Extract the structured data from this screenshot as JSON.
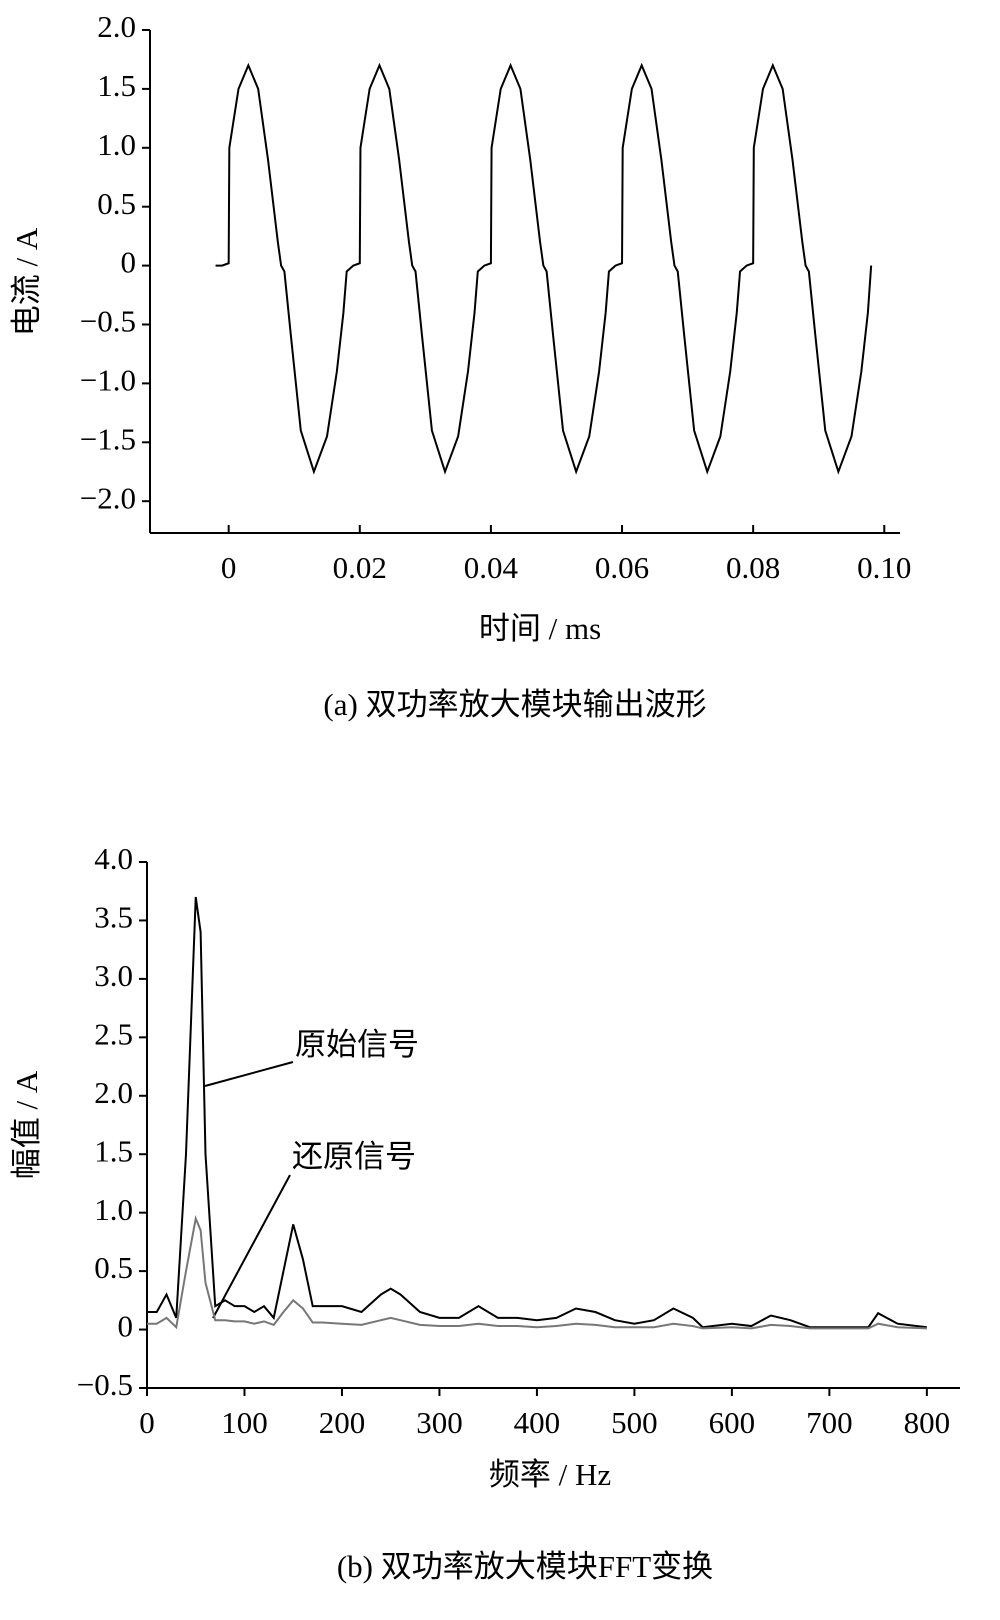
{
  "chart_data": [
    {
      "type": "line",
      "caption": "(a)  双功率放大模块输出波形",
      "xlabel": "时间 / ms",
      "ylabel": "电流 / A",
      "color": "#000000",
      "xlim": [
        -0.012,
        0.1024
      ],
      "ylim": [
        -2.27,
        2.0
      ],
      "xticks": [
        0,
        0.02,
        0.04,
        0.06,
        0.08,
        {
          "value": 0.1,
          "label": "0.10"
        }
      ],
      "yticks": [
        {
          "value": 2,
          "label": "2.0"
        },
        1.5,
        {
          "value": 1,
          "label": "1.0"
        },
        0.5,
        0,
        {
          "value": -0.5,
          "label": "−0.5"
        },
        {
          "value": -1,
          "label": "−1.0"
        },
        {
          "value": -1.5,
          "label": "−1.5"
        },
        {
          "value": -2,
          "label": "−2.0"
        }
      ],
      "x": [
        -0.002,
        -0.001,
        0,
        0.0001,
        0.0015,
        0.003,
        0.0045,
        0.006,
        0.0075,
        0.008,
        0.0085,
        0.0095,
        0.011,
        0.013,
        0.015,
        0.0165,
        0.0175,
        0.018,
        0.019,
        0.02,
        0.0201,
        0.0215,
        0.023,
        0.0245,
        0.026,
        0.0275,
        0.028,
        0.0285,
        0.0295,
        0.031,
        0.033,
        0.035,
        0.0365,
        0.0375,
        0.038,
        0.039,
        0.04,
        0.0401,
        0.0415,
        0.043,
        0.0445,
        0.046,
        0.0475,
        0.048,
        0.0485,
        0.0495,
        0.051,
        0.053,
        0.055,
        0.0565,
        0.0575,
        0.058,
        0.059,
        0.06,
        0.0601,
        0.0615,
        0.063,
        0.0645,
        0.066,
        0.0675,
        0.068,
        0.0685,
        0.0695,
        0.071,
        0.073,
        0.075,
        0.0765,
        0.0775,
        0.078,
        0.079,
        0.08,
        0.0801,
        0.0815,
        0.083,
        0.0845,
        0.086,
        0.0875,
        0.088,
        0.0885,
        0.0895,
        0.091,
        0.093,
        0.095,
        0.0965,
        0.0975,
        0.098
      ],
      "values": [
        0,
        0,
        0.02,
        1.0,
        1.5,
        1.7,
        1.5,
        0.9,
        0.2,
        0,
        -0.05,
        -0.6,
        -1.4,
        -1.75,
        -1.45,
        -0.9,
        -0.4,
        -0.05,
        0,
        0.02,
        1.0,
        1.5,
        1.7,
        1.5,
        0.9,
        0.2,
        0,
        -0.05,
        -0.6,
        -1.4,
        -1.75,
        -1.45,
        -0.9,
        -0.4,
        -0.05,
        0,
        0.02,
        1.0,
        1.5,
        1.7,
        1.5,
        0.9,
        0.2,
        0,
        -0.05,
        -0.6,
        -1.4,
        -1.75,
        -1.45,
        -0.9,
        -0.4,
        -0.05,
        0,
        0.02,
        1.0,
        1.5,
        1.7,
        1.5,
        0.9,
        0.2,
        0,
        -0.05,
        -0.6,
        -1.4,
        -1.75,
        -1.45,
        -0.9,
        -0.4,
        -0.05,
        0,
        0.02,
        1.0,
        1.5,
        1.7,
        1.5,
        0.9,
        0.2,
        0,
        -0.05,
        -0.6,
        -1.4,
        -1.75,
        -1.45,
        -0.9,
        -0.4,
        0
      ]
    },
    {
      "type": "line",
      "caption": "(b)  双功率放大模块FFT变换",
      "xlabel": "频率 / Hz",
      "ylabel": "幅值 / A",
      "xlim": [
        0,
        834
      ],
      "ylim": [
        -0.5,
        4.0
      ],
      "xticks": [
        0,
        100,
        200,
        300,
        400,
        500,
        600,
        700,
        800
      ],
      "yticks": [
        {
          "value": 4,
          "label": "4.0"
        },
        3.5,
        {
          "value": 3,
          "label": "3.0"
        },
        2.5,
        {
          "value": 2,
          "label": "2.0"
        },
        1.5,
        {
          "value": 1,
          "label": "1.0"
        },
        0.5,
        0,
        {
          "value": -0.5,
          "label": "−0.5"
        }
      ],
      "x": [
        0,
        10,
        20,
        30,
        40,
        50,
        55,
        60,
        70,
        80,
        90,
        100,
        110,
        120,
        130,
        140,
        150,
        160,
        170,
        180,
        200,
        220,
        240,
        250,
        260,
        280,
        300,
        320,
        340,
        360,
        380,
        400,
        420,
        440,
        460,
        480,
        500,
        520,
        540,
        560,
        570,
        600,
        620,
        640,
        660,
        680,
        740,
        750,
        770,
        800
      ],
      "series": [
        {
          "name": "原始信号",
          "color": "#000000",
          "values": [
            0.15,
            0.15,
            0.3,
            0.1,
            1.5,
            3.7,
            3.4,
            1.5,
            0.2,
            0.25,
            0.2,
            0.2,
            0.15,
            0.2,
            0.1,
            0.5,
            0.9,
            0.6,
            0.2,
            0.2,
            0.2,
            0.15,
            0.3,
            0.35,
            0.3,
            0.15,
            0.1,
            0.1,
            0.2,
            0.1,
            0.1,
            0.08,
            0.1,
            0.18,
            0.15,
            0.08,
            0.05,
            0.08,
            0.18,
            0.1,
            0.02,
            0.05,
            0.03,
            0.12,
            0.08,
            0.02,
            0.02,
            0.14,
            0.05,
            0.02
          ]
        },
        {
          "name": "还原信号",
          "color": "#777777",
          "values": [
            0.05,
            0.05,
            0.1,
            0.02,
            0.5,
            0.95,
            0.85,
            0.4,
            0.08,
            0.08,
            0.07,
            0.07,
            0.05,
            0.07,
            0.04,
            0.15,
            0.25,
            0.18,
            0.06,
            0.06,
            0.05,
            0.04,
            0.08,
            0.1,
            0.08,
            0.04,
            0.03,
            0.03,
            0.05,
            0.03,
            0.03,
            0.02,
            0.03,
            0.05,
            0.04,
            0.02,
            0.02,
            0.02,
            0.05,
            0.03,
            0.01,
            0.02,
            0.01,
            0.04,
            0.03,
            0.01,
            0.01,
            0.05,
            0.02,
            0.01
          ]
        }
      ]
    }
  ]
}
